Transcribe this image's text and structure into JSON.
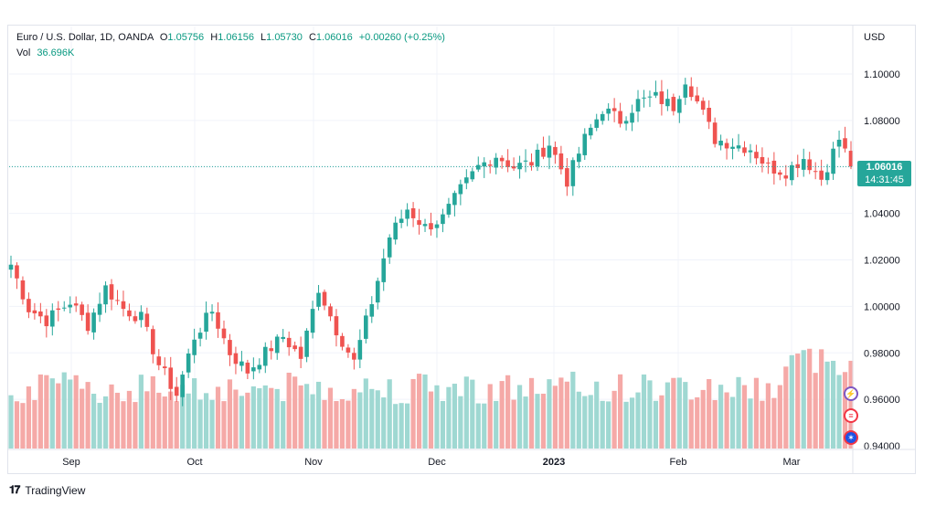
{
  "legend": {
    "symbol": "Euro / U.S. Dollar, 1D, OANDA",
    "o_label": "O",
    "o_value": "1.05756",
    "h_label": "H",
    "h_value": "1.06156",
    "l_label": "L",
    "l_value": "1.05730",
    "c_label": "C",
    "c_value": "1.06016",
    "change": "+0.00260 (+0.25%)",
    "vol_label": "Vol",
    "vol_value": "36.696K"
  },
  "axis": {
    "currency": "USD",
    "last_price": "1.06016",
    "countdown": "14:31:45"
  },
  "brand": {
    "name": "TradingView"
  },
  "badges": [
    {
      "icon": "lightning-icon",
      "color": "#7e57c2"
    },
    {
      "icon": "us-flag-icon",
      "color": "#f23645"
    },
    {
      "icon": "eu-flag-icon",
      "color": "#1e53e5"
    }
  ],
  "colors": {
    "up": "#26a69a",
    "down": "#ef5350",
    "up_vol": "#9fd8d2",
    "down_vol": "#f5a9a7"
  },
  "chart_data": {
    "type": "candlestick",
    "y_ticks": [
      "1.10000",
      "1.08000",
      "1.06000",
      "1.04000",
      "1.02000",
      "1.00000",
      "0.98000",
      "0.96000",
      "0.94000"
    ],
    "ylim": [
      0.94,
      1.105
    ],
    "x_ticks": [
      "Sep",
      "Oct",
      "Nov",
      "Dec",
      "2023",
      "Feb",
      "Mar"
    ],
    "last_price": 1.06016,
    "grid": true,
    "series": [
      {
        "name": "candles",
        "anchors": [
          [
            0,
            1.018
          ],
          [
            3,
            0.999
          ],
          [
            6,
            0.994
          ],
          [
            10,
            1.002
          ],
          [
            13,
            0.992
          ],
          [
            16,
            1.008
          ],
          [
            19,
            0.999
          ],
          [
            22,
            0.995
          ],
          [
            25,
            0.975
          ],
          [
            28,
            0.962
          ],
          [
            31,
            0.987
          ],
          [
            34,
            0.998
          ],
          [
            37,
            0.98
          ],
          [
            40,
            0.972
          ],
          [
            43,
            0.98
          ],
          [
            46,
            0.987
          ],
          [
            49,
            0.978
          ],
          [
            52,
            1.008
          ],
          [
            55,
            0.99
          ],
          [
            58,
            0.976
          ],
          [
            61,
            1.002
          ],
          [
            64,
            1.03
          ],
          [
            67,
            1.042
          ],
          [
            70,
            1.034
          ],
          [
            73,
            1.038
          ],
          [
            76,
            1.05
          ],
          [
            79,
            1.06
          ],
          [
            82,
            1.065
          ],
          [
            85,
            1.06
          ],
          [
            88,
            1.062
          ],
          [
            91,
            1.07
          ],
          [
            94,
            1.054
          ],
          [
            97,
            1.072
          ],
          [
            100,
            1.085
          ],
          [
            103,
            1.08
          ],
          [
            106,
            1.088
          ],
          [
            109,
            1.09
          ],
          [
            112,
            1.086
          ],
          [
            114,
            1.098
          ],
          [
            116,
            1.088
          ],
          [
            119,
            1.072
          ],
          [
            122,
            1.07
          ],
          [
            125,
            1.068
          ],
          [
            128,
            1.06
          ],
          [
            131,
            1.058
          ],
          [
            134,
            1.064
          ],
          [
            137,
            1.055
          ],
          [
            140,
            1.072
          ],
          [
            142,
            1.061
          ]
        ]
      },
      {
        "name": "volume",
        "levels": [
          0.962,
          0.983
        ]
      }
    ]
  }
}
